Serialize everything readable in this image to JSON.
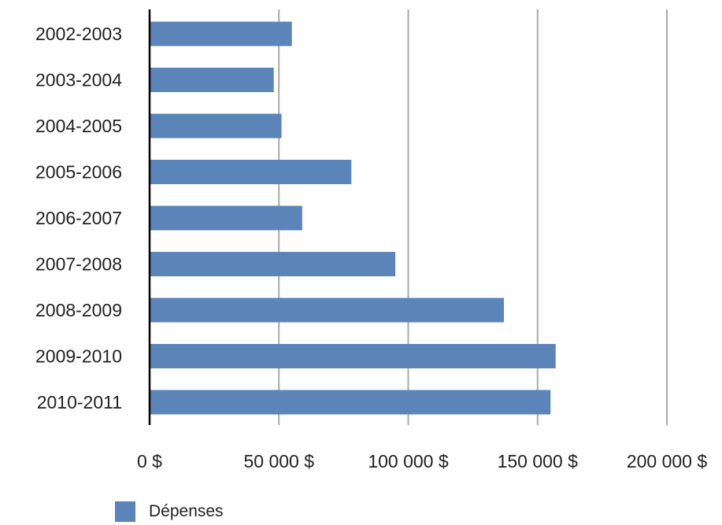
{
  "chart_data": {
    "type": "bar",
    "orientation": "horizontal",
    "categories": [
      "2002-2003",
      "2003-2004",
      "2004-2005",
      "2005-2006",
      "2006-2007",
      "2007-2008",
      "2008-2009",
      "2009-2010",
      "2010-2011"
    ],
    "series": [
      {
        "name": "Dépenses",
        "values": [
          55000,
          48000,
          51000,
          78000,
          59000,
          95000,
          137000,
          157000,
          155000
        ],
        "color": "#5b84b8"
      }
    ],
    "xlim": [
      0,
      200000
    ],
    "xticks": [
      0,
      50000,
      100000,
      150000,
      200000
    ],
    "xtick_labels": [
      "0 $",
      "50 000 $",
      "100 000 $",
      "150 000 $",
      "200 000 $"
    ],
    "title": "",
    "xlabel": "",
    "ylabel": "",
    "grid": true,
    "grid_color": "#aaaaaa",
    "legend_position": "bottom-left"
  },
  "legend": {
    "label": "Dépenses",
    "color": "#5b84b8"
  }
}
